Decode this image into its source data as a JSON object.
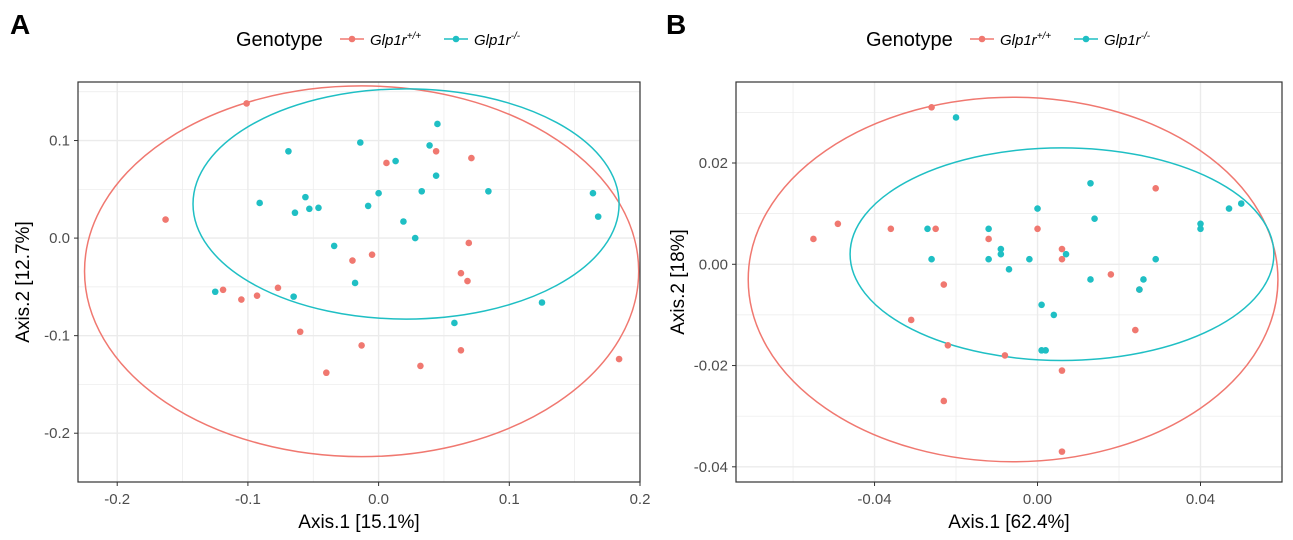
{
  "colors": {
    "wild_type": "#F07870",
    "knockout": "#1FBFC4",
    "grid": "#EBEBEB",
    "axis_text": "#4D4D4D"
  },
  "chart_data": [
    {
      "panel_label": "A",
      "type": "scatter",
      "legend": {
        "title": "Genotype",
        "placement": "top",
        "entries": [
          {
            "gene": "Glp1r",
            "sup": "+/+",
            "color": "#F07870"
          },
          {
            "gene": "Glp1r",
            "sup": "-/-",
            "color": "#1FBFC4"
          }
        ]
      },
      "xlabel": "Axis.1   [15.1%]",
      "ylabel": "Axis.2   [12.7%]",
      "xlim": [
        -0.23,
        0.2
      ],
      "ylim": [
        -0.25,
        0.16
      ],
      "xticks": [
        -0.2,
        -0.1,
        0.0,
        0.1,
        0.2
      ],
      "xtick_labels": [
        "-0.2",
        "-0.1",
        "0.0",
        "0.1",
        "0.2"
      ],
      "yticks": [
        -0.2,
        -0.1,
        0.0,
        0.1
      ],
      "ytick_labels": [
        "-0.2",
        "-0.1",
        "0.0",
        "0.1"
      ],
      "grid": true,
      "series": [
        {
          "color": "#F07870",
          "points": [
            [
              -0.101,
              0.138
            ],
            [
              0.006,
              0.077
            ],
            [
              0.044,
              0.089
            ],
            [
              0.071,
              0.082
            ],
            [
              -0.163,
              0.019
            ],
            [
              0.069,
              -0.005
            ],
            [
              -0.02,
              -0.023
            ],
            [
              -0.005,
              -0.017
            ],
            [
              0.063,
              -0.036
            ],
            [
              0.068,
              -0.044
            ],
            [
              -0.119,
              -0.053
            ],
            [
              -0.077,
              -0.051
            ],
            [
              -0.093,
              -0.059
            ],
            [
              -0.105,
              -0.063
            ],
            [
              -0.06,
              -0.096
            ],
            [
              -0.013,
              -0.11
            ],
            [
              0.063,
              -0.115
            ],
            [
              0.032,
              -0.131
            ],
            [
              -0.04,
              -0.138
            ],
            [
              0.184,
              -0.124
            ]
          ],
          "ellipse": {
            "center": [
              -0.013,
              -0.034
            ],
            "rx": 0.212,
            "ry": 0.19
          }
        },
        {
          "color": "#1FBFC4",
          "points": [
            [
              0.045,
              0.117
            ],
            [
              -0.014,
              0.098
            ],
            [
              0.039,
              0.095
            ],
            [
              -0.069,
              0.089
            ],
            [
              0.013,
              0.079
            ],
            [
              0.044,
              0.064
            ],
            [
              -0.056,
              0.042
            ],
            [
              0.084,
              0.048
            ],
            [
              0.033,
              0.048
            ],
            [
              0.0,
              0.046
            ],
            [
              0.164,
              0.046
            ],
            [
              -0.091,
              0.036
            ],
            [
              -0.008,
              0.033
            ],
            [
              -0.046,
              0.031
            ],
            [
              -0.053,
              0.03
            ],
            [
              -0.064,
              0.026
            ],
            [
              0.168,
              0.022
            ],
            [
              0.019,
              0.017
            ],
            [
              0.028,
              0.0
            ],
            [
              -0.034,
              -0.008
            ],
            [
              -0.018,
              -0.046
            ],
            [
              -0.125,
              -0.055
            ],
            [
              -0.065,
              -0.06
            ],
            [
              0.125,
              -0.066
            ],
            [
              0.058,
              -0.087
            ]
          ],
          "ellipse": {
            "center": [
              0.021,
              0.035
            ],
            "rx": 0.163,
            "ry": 0.118
          }
        }
      ]
    },
    {
      "panel_label": "B",
      "type": "scatter",
      "legend": {
        "title": "Genotype",
        "placement": "top",
        "entries": [
          {
            "gene": "Glp1r",
            "sup": "+/+",
            "color": "#F07870"
          },
          {
            "gene": "Glp1r",
            "sup": "-/-",
            "color": "#1FBFC4"
          }
        ]
      },
      "xlabel": "Axis.1   [62.4%]",
      "ylabel": "Axis.2   [18%]",
      "xlim": [
        -0.074,
        0.06
      ],
      "ylim": [
        -0.043,
        0.036
      ],
      "xticks": [
        -0.04,
        0.0,
        0.04
      ],
      "xtick_labels": [
        "-0.04",
        "0.00",
        "0.04"
      ],
      "yticks": [
        -0.04,
        -0.02,
        0.0,
        0.02
      ],
      "ytick_labels": [
        "-0.04",
        "-0.02",
        "0.00",
        "0.02"
      ],
      "grid": true,
      "series": [
        {
          "color": "#F07870",
          "points": [
            [
              -0.026,
              0.031
            ],
            [
              0.029,
              0.015
            ],
            [
              -0.049,
              0.008
            ],
            [
              -0.036,
              0.007
            ],
            [
              -0.025,
              0.007
            ],
            [
              -0.055,
              0.005
            ],
            [
              -0.012,
              0.005
            ],
            [
              0.0,
              0.007
            ],
            [
              0.006,
              0.003
            ],
            [
              0.006,
              0.001
            ],
            [
              0.018,
              -0.002
            ],
            [
              -0.023,
              -0.004
            ],
            [
              0.025,
              -0.005
            ],
            [
              -0.031,
              -0.011
            ],
            [
              0.024,
              -0.013
            ],
            [
              -0.022,
              -0.016
            ],
            [
              -0.008,
              -0.018
            ],
            [
              0.006,
              -0.021
            ],
            [
              -0.023,
              -0.027
            ],
            [
              0.006,
              -0.037
            ]
          ],
          "ellipse": {
            "center": [
              -0.006,
              -0.003
            ],
            "rx": 0.065,
            "ry": 0.036
          }
        },
        {
          "color": "#1FBFC4",
          "points": [
            [
              -0.02,
              0.029
            ],
            [
              0.013,
              0.016
            ],
            [
              0.05,
              0.012
            ],
            [
              0.047,
              0.011
            ],
            [
              0.0,
              0.011
            ],
            [
              0.014,
              0.009
            ],
            [
              0.04,
              0.008
            ],
            [
              -0.027,
              0.007
            ],
            [
              0.04,
              0.007
            ],
            [
              -0.012,
              0.007
            ],
            [
              -0.009,
              0.003
            ],
            [
              -0.009,
              0.002
            ],
            [
              0.007,
              0.002
            ],
            [
              -0.026,
              0.001
            ],
            [
              -0.012,
              0.001
            ],
            [
              -0.002,
              0.001
            ],
            [
              0.029,
              0.001
            ],
            [
              -0.007,
              -0.001
            ],
            [
              0.026,
              -0.003
            ],
            [
              0.013,
              -0.003
            ],
            [
              0.025,
              -0.005
            ],
            [
              0.001,
              -0.008
            ],
            [
              0.004,
              -0.01
            ],
            [
              0.001,
              -0.017
            ],
            [
              0.002,
              -0.017
            ]
          ],
          "ellipse": {
            "center": [
              0.006,
              0.002
            ],
            "rx": 0.052,
            "ry": 0.021
          }
        }
      ]
    }
  ]
}
